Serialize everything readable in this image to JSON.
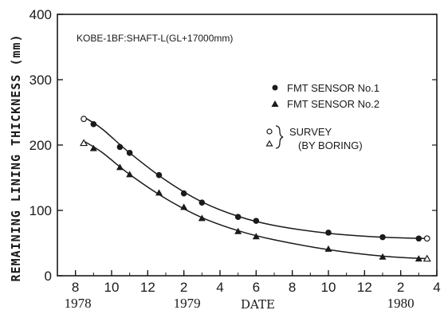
{
  "chart_data": {
    "type": "scatter",
    "title": "KOBE-1BF:SHAFT-L(GL+17000mm)",
    "ylabel": "REMAINING LINING THICKNESS (mm)",
    "xlabel": "DATE",
    "ylim": [
      0,
      400
    ],
    "xlim": [
      "1978-07",
      "1980-04"
    ],
    "y_ticks": [
      "0",
      "100",
      "200",
      "300",
      "400"
    ],
    "x_ticks": [
      "8",
      "10",
      "12",
      "2",
      "4",
      "6",
      "8",
      "10",
      "12",
      "2",
      "4"
    ],
    "year_labels": [
      "1978",
      "1979",
      "1980"
    ],
    "grid": false,
    "legend_position": "right",
    "legend": {
      "sensor1": "FMT SENSOR No.1",
      "sensor2": "FMT SENSOR No.2",
      "survey": "SURVEY",
      "survey_sub": "(BY BORING)"
    },
    "series": [
      {
        "name": "FMT SENSOR No.1",
        "marker": "filled-circle",
        "x": [
          "1978-09-01",
          "1978-10-15",
          "1978-11-01",
          "1978-12-20",
          "1979-02-01",
          "1979-03-01",
          "1979-05-01",
          "1979-06-01",
          "1979-10-01",
          "1980-01-01",
          "1980-03-01"
        ],
        "y": [
          232,
          197,
          188,
          154,
          126,
          112,
          90,
          84,
          66,
          59,
          57
        ]
      },
      {
        "name": "FMT SENSOR No.2",
        "marker": "filled-triangle",
        "x": [
          "1978-09-01",
          "1978-10-15",
          "1978-11-01",
          "1978-12-20",
          "1979-02-01",
          "1979-03-01",
          "1979-05-01",
          "1979-06-01",
          "1979-10-01",
          "1980-01-01",
          "1980-03-01"
        ],
        "y": [
          195,
          166,
          155,
          127,
          105,
          88,
          68,
          60,
          41,
          29,
          26
        ]
      },
      {
        "name": "SURVEY",
        "marker": "open-circle",
        "x": [
          "1978-08-15",
          "1980-03-15"
        ],
        "y": [
          240,
          57
        ]
      },
      {
        "name": "(BY BORING)",
        "marker": "open-triangle",
        "x": [
          "1978-08-15",
          "1980-03-15"
        ],
        "y": [
          203,
          26
        ]
      }
    ],
    "fitted_curves": [
      {
        "x": [
          "1978-08-15",
          "1978-09-15",
          "1978-11-01",
          "1979-01-01",
          "1979-03-01",
          "1979-05-01",
          "1979-07-01",
          "1979-10-01",
          "1980-01-01",
          "1980-03-15"
        ],
        "y": [
          243,
          225,
          188,
          146,
          113,
          91,
          77,
          65,
          59,
          57
        ]
      },
      {
        "x": [
          "1978-08-15",
          "1978-09-15",
          "1978-11-01",
          "1979-01-01",
          "1979-03-01",
          "1979-05-01",
          "1979-07-01",
          "1979-10-01",
          "1980-01-01",
          "1980-03-15"
        ],
        "y": [
          206,
          189,
          155,
          118,
          89,
          69,
          55,
          40,
          30,
          26
        ]
      }
    ]
  }
}
